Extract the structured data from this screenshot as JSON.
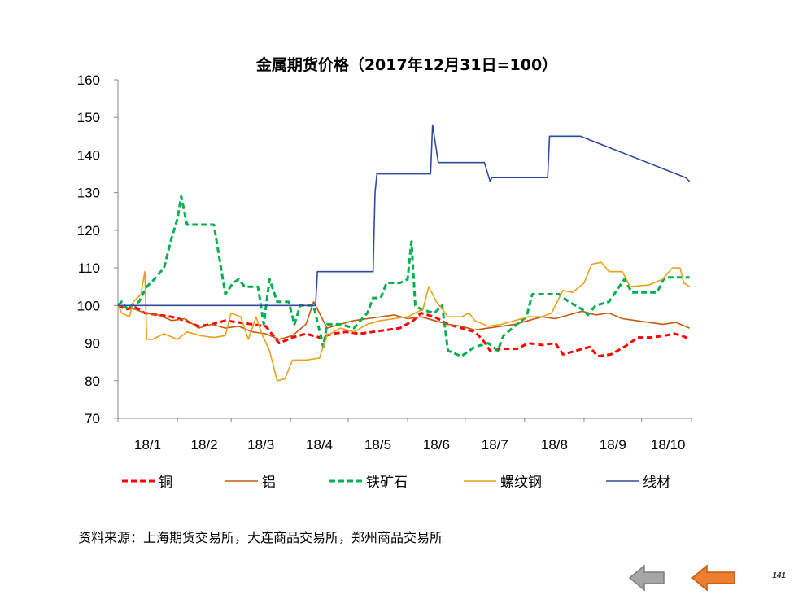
{
  "chart_data": {
    "type": "line",
    "title": "金属期货价格（2017年12月31日=100）",
    "xlabel": "",
    "ylabel": "",
    "ylim": [
      70,
      160
    ],
    "yticks": [
      70,
      80,
      90,
      100,
      110,
      120,
      130,
      140,
      150,
      160
    ],
    "xlim": [
      "2018-01-01",
      "2018-10-27"
    ],
    "x_tick_labels": [
      {
        "date": "2018-01-01",
        "label": "18/1"
      },
      {
        "date": "2018-02-01",
        "label": "18/2"
      },
      {
        "date": "2018-03-01",
        "label": "18/3"
      },
      {
        "date": "2018-04-01",
        "label": "18/4"
      },
      {
        "date": "2018-05-01",
        "label": "18/5"
      },
      {
        "date": "2018-06-01",
        "label": "18/6"
      },
      {
        "date": "2018-07-01",
        "label": "18/7"
      },
      {
        "date": "2018-08-01",
        "label": "18/8"
      },
      {
        "date": "2018-09-01",
        "label": "18/9"
      },
      {
        "date": "2018-10-01",
        "label": "18/10"
      }
    ],
    "grid": false,
    "legend_position": "bottom",
    "series": [
      {
        "name": "铜",
        "color": "#ff0000",
        "style": "dashed",
        "points": [
          [
            "2018-01-01",
            100
          ],
          [
            "2018-01-05",
            99
          ],
          [
            "2018-01-10",
            99.5
          ],
          [
            "2018-01-15",
            98
          ],
          [
            "2018-01-22",
            97.5
          ],
          [
            "2018-01-29",
            97
          ],
          [
            "2018-02-05",
            96
          ],
          [
            "2018-02-12",
            94.5
          ],
          [
            "2018-02-19",
            95
          ],
          [
            "2018-02-26",
            96
          ],
          [
            "2018-03-05",
            95.5
          ],
          [
            "2018-03-12",
            95
          ],
          [
            "2018-03-19",
            94.5
          ],
          [
            "2018-03-26",
            90
          ],
          [
            "2018-04-02",
            91.5
          ],
          [
            "2018-04-09",
            92.5
          ],
          [
            "2018-04-16",
            91.5
          ],
          [
            "2018-04-23",
            92.5
          ],
          [
            "2018-04-30",
            93
          ],
          [
            "2018-05-07",
            92.5
          ],
          [
            "2018-05-14",
            93
          ],
          [
            "2018-05-21",
            93.5
          ],
          [
            "2018-05-28",
            94
          ],
          [
            "2018-06-04",
            96
          ],
          [
            "2018-06-08",
            98
          ],
          [
            "2018-06-15",
            97
          ],
          [
            "2018-06-22",
            95
          ],
          [
            "2018-06-29",
            94
          ],
          [
            "2018-07-06",
            93
          ],
          [
            "2018-07-10",
            91
          ],
          [
            "2018-07-14",
            88
          ],
          [
            "2018-07-21",
            88.5
          ],
          [
            "2018-07-28",
            88.5
          ],
          [
            "2018-08-03",
            90
          ],
          [
            "2018-08-10",
            89.5
          ],
          [
            "2018-08-17",
            90
          ],
          [
            "2018-08-21",
            87
          ],
          [
            "2018-08-28",
            88
          ],
          [
            "2018-09-04",
            89
          ],
          [
            "2018-09-08",
            86.5
          ],
          [
            "2018-09-15",
            87
          ],
          [
            "2018-09-22",
            89
          ],
          [
            "2018-09-29",
            91.5
          ],
          [
            "2018-10-06",
            91.5
          ],
          [
            "2018-10-13",
            92
          ],
          [
            "2018-10-18",
            92.5
          ],
          [
            "2018-10-22",
            92
          ],
          [
            "2018-10-26",
            91
          ]
        ]
      },
      {
        "name": "铝",
        "color": "#c55a11",
        "style": "solid",
        "points": [
          [
            "2018-01-01",
            100
          ],
          [
            "2018-01-05",
            99.5
          ],
          [
            "2018-01-10",
            99
          ],
          [
            "2018-01-15",
            98
          ],
          [
            "2018-01-22",
            97.5
          ],
          [
            "2018-01-29",
            96
          ],
          [
            "2018-02-05",
            96.5
          ],
          [
            "2018-02-12",
            94
          ],
          [
            "2018-02-19",
            95
          ],
          [
            "2018-02-26",
            94
          ],
          [
            "2018-03-05",
            94.5
          ],
          [
            "2018-03-12",
            93
          ],
          [
            "2018-03-19",
            92.5
          ],
          [
            "2018-03-26",
            91
          ],
          [
            "2018-04-02",
            92
          ],
          [
            "2018-04-09",
            95
          ],
          [
            "2018-04-13",
            101
          ],
          [
            "2018-04-16",
            98
          ],
          [
            "2018-04-20",
            94
          ],
          [
            "2018-04-27",
            95
          ],
          [
            "2018-05-04",
            96
          ],
          [
            "2018-05-11",
            96.5
          ],
          [
            "2018-05-18",
            97
          ],
          [
            "2018-05-25",
            97.5
          ],
          [
            "2018-06-01",
            96.5
          ],
          [
            "2018-06-08",
            97
          ],
          [
            "2018-06-15",
            96
          ],
          [
            "2018-06-22",
            95
          ],
          [
            "2018-06-29",
            94.5
          ],
          [
            "2018-07-06",
            93.5
          ],
          [
            "2018-07-13",
            94
          ],
          [
            "2018-07-20",
            94.5
          ],
          [
            "2018-07-27",
            95
          ],
          [
            "2018-08-03",
            96
          ],
          [
            "2018-08-10",
            97
          ],
          [
            "2018-08-17",
            96.5
          ],
          [
            "2018-08-24",
            97.5
          ],
          [
            "2018-08-31",
            98.5
          ],
          [
            "2018-09-07",
            97.5
          ],
          [
            "2018-09-14",
            98
          ],
          [
            "2018-09-21",
            96.5
          ],
          [
            "2018-09-28",
            96
          ],
          [
            "2018-10-05",
            95.5
          ],
          [
            "2018-10-12",
            95
          ],
          [
            "2018-10-19",
            95.5
          ],
          [
            "2018-10-26",
            94
          ]
        ]
      },
      {
        "name": "铁矿石",
        "color": "#00b050",
        "style": "dashed",
        "points": [
          [
            "2018-01-01",
            100
          ],
          [
            "2018-01-03",
            101
          ],
          [
            "2018-01-06",
            99
          ],
          [
            "2018-01-09",
            100.5
          ],
          [
            "2018-01-12",
            101
          ],
          [
            "2018-01-16",
            105
          ],
          [
            "2018-01-20",
            107
          ],
          [
            "2018-01-25",
            110
          ],
          [
            "2018-01-29",
            118
          ],
          [
            "2018-02-01",
            123
          ],
          [
            "2018-02-03",
            129
          ],
          [
            "2018-02-06",
            121.5
          ],
          [
            "2018-02-12",
            121.5
          ],
          [
            "2018-02-20",
            121.5
          ],
          [
            "2018-02-26",
            103
          ],
          [
            "2018-03-02",
            106
          ],
          [
            "2018-03-05",
            107
          ],
          [
            "2018-03-08",
            105
          ],
          [
            "2018-03-15",
            105
          ],
          [
            "2018-03-18",
            95
          ],
          [
            "2018-03-21",
            107
          ],
          [
            "2018-03-25",
            101
          ],
          [
            "2018-03-31",
            101
          ],
          [
            "2018-04-03",
            95
          ],
          [
            "2018-04-06",
            100
          ],
          [
            "2018-04-13",
            100
          ],
          [
            "2018-04-18",
            89
          ],
          [
            "2018-04-20",
            95
          ],
          [
            "2018-04-27",
            95
          ],
          [
            "2018-05-04",
            94
          ],
          [
            "2018-05-11",
            98
          ],
          [
            "2018-05-14",
            102
          ],
          [
            "2018-05-18",
            102
          ],
          [
            "2018-05-21",
            106
          ],
          [
            "2018-05-28",
            106
          ],
          [
            "2018-06-01",
            107
          ],
          [
            "2018-06-03",
            117
          ],
          [
            "2018-06-05",
            100
          ],
          [
            "2018-06-08",
            99
          ],
          [
            "2018-06-15",
            98
          ],
          [
            "2018-06-19",
            100
          ],
          [
            "2018-06-22",
            88
          ],
          [
            "2018-06-29",
            86.5
          ],
          [
            "2018-07-06",
            89
          ],
          [
            "2018-07-13",
            90
          ],
          [
            "2018-07-18",
            88
          ],
          [
            "2018-07-21",
            92
          ],
          [
            "2018-07-28",
            95
          ],
          [
            "2018-08-02",
            97
          ],
          [
            "2018-08-05",
            103
          ],
          [
            "2018-08-19",
            103
          ],
          [
            "2018-08-24",
            101
          ],
          [
            "2018-08-31",
            99
          ],
          [
            "2018-09-03",
            97.5
          ],
          [
            "2018-09-07",
            100
          ],
          [
            "2018-09-14",
            101
          ],
          [
            "2018-09-18",
            104
          ],
          [
            "2018-09-22",
            107
          ],
          [
            "2018-09-26",
            103.5
          ],
          [
            "2018-10-09",
            103.5
          ],
          [
            "2018-10-13",
            107.5
          ],
          [
            "2018-10-26",
            107.5
          ]
        ]
      },
      {
        "name": "螺纹钢",
        "color": "#e6a118",
        "style": "solid",
        "points": [
          [
            "2018-01-01",
            100
          ],
          [
            "2018-01-03",
            98
          ],
          [
            "2018-01-07",
            97
          ],
          [
            "2018-01-09",
            101
          ],
          [
            "2018-01-13",
            103
          ],
          [
            "2018-01-15",
            109
          ],
          [
            "2018-01-16",
            91
          ],
          [
            "2018-01-19",
            91
          ],
          [
            "2018-01-25",
            92.5
          ],
          [
            "2018-02-01",
            91
          ],
          [
            "2018-02-06",
            93
          ],
          [
            "2018-02-13",
            92
          ],
          [
            "2018-02-20",
            91.5
          ],
          [
            "2018-02-26",
            92
          ],
          [
            "2018-03-01",
            98
          ],
          [
            "2018-03-06",
            97
          ],
          [
            "2018-03-10",
            91
          ],
          [
            "2018-03-14",
            97
          ],
          [
            "2018-03-17",
            92.5
          ],
          [
            "2018-03-21",
            88
          ],
          [
            "2018-03-25",
            80
          ],
          [
            "2018-03-29",
            80.5
          ],
          [
            "2018-04-02",
            85.5
          ],
          [
            "2018-04-09",
            85.5
          ],
          [
            "2018-04-16",
            86
          ],
          [
            "2018-04-20",
            92
          ],
          [
            "2018-04-27",
            94
          ],
          [
            "2018-05-04",
            93
          ],
          [
            "2018-05-11",
            95
          ],
          [
            "2018-05-18",
            96
          ],
          [
            "2018-05-25",
            96.5
          ],
          [
            "2018-06-01",
            97
          ],
          [
            "2018-06-09",
            99
          ],
          [
            "2018-06-12",
            105
          ],
          [
            "2018-06-16",
            101
          ],
          [
            "2018-06-22",
            97
          ],
          [
            "2018-06-29",
            97
          ],
          [
            "2018-07-03",
            98
          ],
          [
            "2018-07-06",
            96
          ],
          [
            "2018-07-13",
            94.5
          ],
          [
            "2018-07-20",
            95
          ],
          [
            "2018-07-27",
            96
          ],
          [
            "2018-08-03",
            97
          ],
          [
            "2018-08-10",
            97
          ],
          [
            "2018-08-15",
            98
          ],
          [
            "2018-08-21",
            104
          ],
          [
            "2018-08-26",
            103.5
          ],
          [
            "2018-09-01",
            106
          ],
          [
            "2018-09-05",
            111
          ],
          [
            "2018-09-10",
            111.5
          ],
          [
            "2018-09-14",
            109
          ],
          [
            "2018-09-21",
            109
          ],
          [
            "2018-09-25",
            105
          ],
          [
            "2018-10-05",
            105.5
          ],
          [
            "2018-10-12",
            107
          ],
          [
            "2018-10-17",
            110
          ],
          [
            "2018-10-21",
            110
          ],
          [
            "2018-10-23",
            106
          ],
          [
            "2018-10-26",
            105
          ]
        ]
      },
      {
        "name": "线材",
        "color": "#2e4a9e",
        "style": "solid",
        "points": [
          [
            "2018-01-01",
            100
          ],
          [
            "2018-04-14",
            100
          ],
          [
            "2018-04-15",
            109
          ],
          [
            "2018-05-14",
            109
          ],
          [
            "2018-05-15",
            130
          ],
          [
            "2018-05-16",
            135
          ],
          [
            "2018-06-13",
            135
          ],
          [
            "2018-06-14",
            148
          ],
          [
            "2018-06-17",
            138
          ],
          [
            "2018-07-11",
            138
          ],
          [
            "2018-07-14",
            133
          ],
          [
            "2018-07-15",
            134
          ],
          [
            "2018-08-13",
            134
          ],
          [
            "2018-08-14",
            145
          ],
          [
            "2018-08-30",
            145
          ],
          [
            "2018-10-24",
            134
          ],
          [
            "2018-10-26",
            133
          ]
        ]
      }
    ]
  },
  "source_note": "资料来源：上海期货交易所，大连商品交易所，郑州商品交易所",
  "page_number": "141",
  "nav": {
    "prev_icon": "left-arrow-gray-icon",
    "next_icon": "left-arrow-orange-icon",
    "prev_color": "#a6a6a6",
    "next_color": "#ed7d31"
  }
}
